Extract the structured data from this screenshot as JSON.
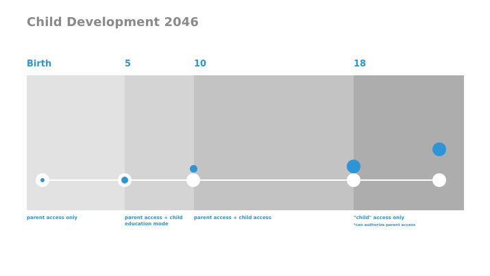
{
  "title": "Child Development 2046",
  "ages": [
    "Birth",
    "5",
    "10",
    "18"
  ],
  "captions": [
    "parent access only",
    "parent access  + child",
    "education mode",
    "parent access + child access",
    "\"child\" access only",
    "*can authorize parent access"
  ],
  "colors": {
    "accent": "#2b95d6",
    "title": "#8a8a8a",
    "band_birth": "#e2e2e2",
    "band_5": "#d4d4d4",
    "band_10": "#c3c3c3",
    "band_18": "#adadad"
  }
}
